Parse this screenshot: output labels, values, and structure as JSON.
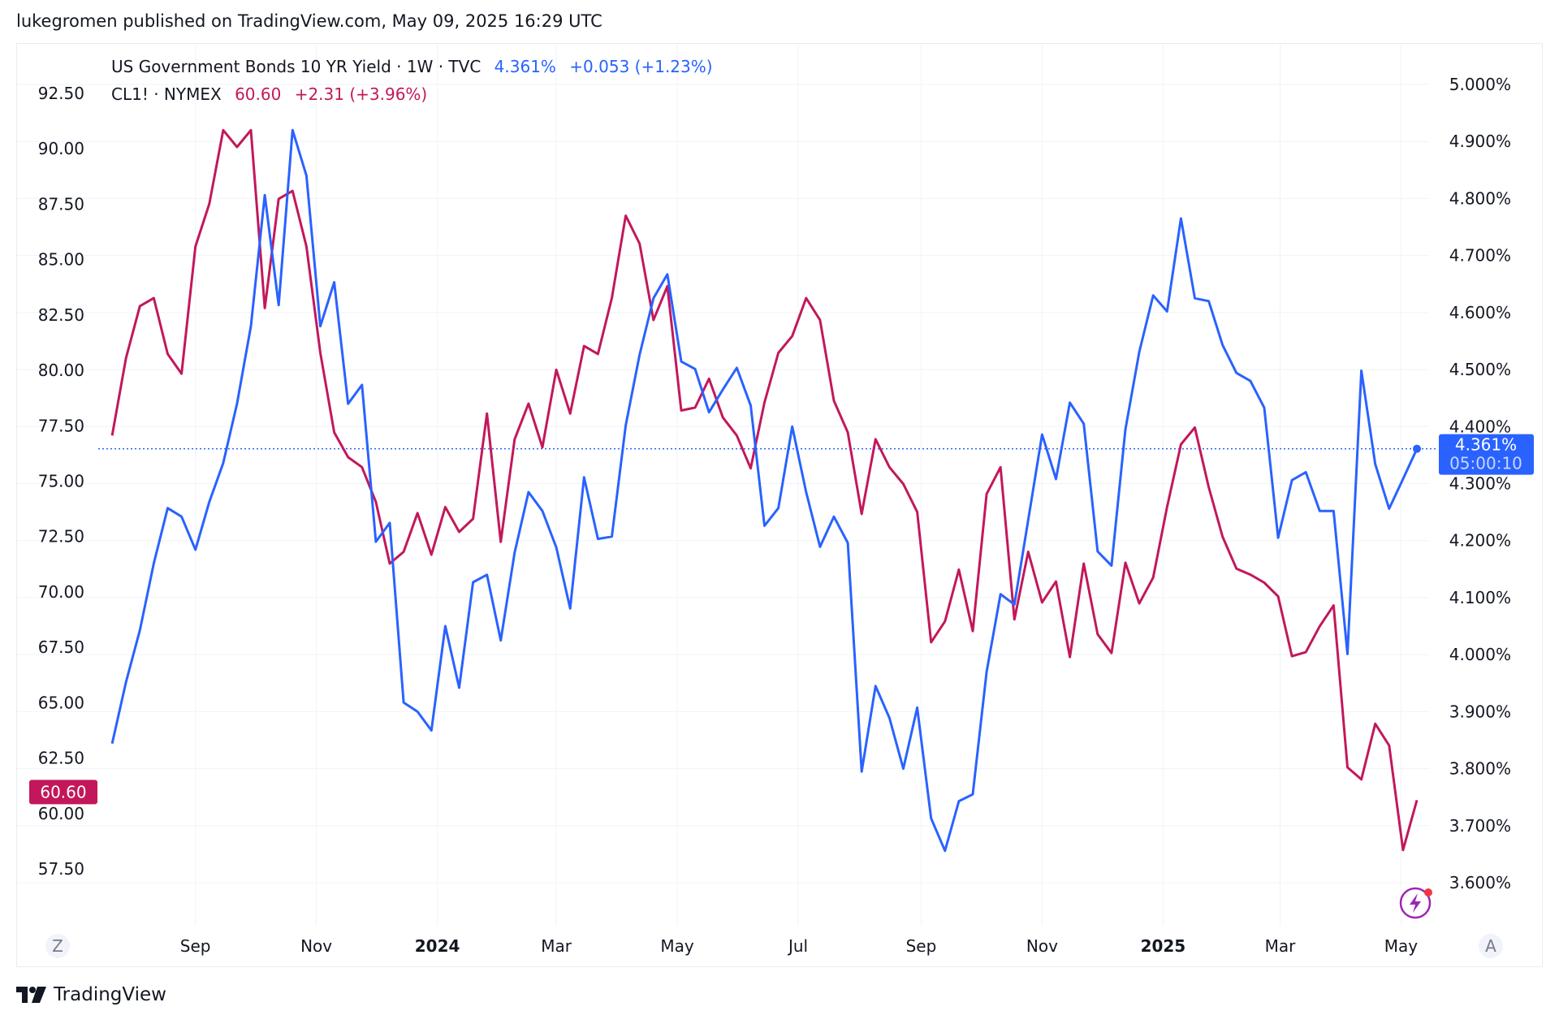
{
  "published": "lukegromen published on TradingView.com, May 09, 2025 16:29 UTC",
  "legend": {
    "series1": {
      "name": "US Government Bonds 10 YR Yield · 1W · TVC",
      "value": "4.361%",
      "change": "+0.053 (+1.23%)"
    },
    "series2": {
      "name": "CL1! · NYMEX",
      "value": "60.60",
      "change": "+2.31 (+3.96%)"
    }
  },
  "badges": {
    "oil_price": "60.60",
    "yield_price": "4.361%",
    "countdown": "05:00:10"
  },
  "axis_buttons": {
    "left": "Z",
    "right": "A"
  },
  "footer": {
    "brand": "TradingView"
  },
  "colors": {
    "yield": "#2962ff",
    "oil": "#c2185b",
    "grid": "#f0f3fa"
  },
  "chart_data": {
    "type": "line",
    "x_start": "2023-07-21",
    "x_interval": "1W",
    "xlim": [
      "2023-07-14",
      "2025-05-09"
    ],
    "x_ticks": [
      {
        "label": "Sep",
        "date": "2023-09-01",
        "bold": false
      },
      {
        "label": "Nov",
        "date": "2023-11-01",
        "bold": false
      },
      {
        "label": "2024",
        "date": "2024-01-01",
        "bold": true
      },
      {
        "label": "Mar",
        "date": "2024-03-01",
        "bold": false
      },
      {
        "label": "May",
        "date": "2024-05-01",
        "bold": false
      },
      {
        "label": "Jul",
        "date": "2024-07-01",
        "bold": false
      },
      {
        "label": "Sep",
        "date": "2024-09-01",
        "bold": false
      },
      {
        "label": "Nov",
        "date": "2024-11-01",
        "bold": false
      },
      {
        "label": "2025",
        "date": "2025-01-01",
        "bold": true
      },
      {
        "label": "Mar",
        "date": "2025-03-01",
        "bold": false
      },
      {
        "label": "May",
        "date": "2025-05-01",
        "bold": false
      }
    ],
    "left_axis": {
      "ylim": [
        57.5,
        92.5
      ],
      "ticks": [
        "92.50",
        "90.00",
        "87.50",
        "85.00",
        "82.50",
        "80.00",
        "77.50",
        "75.00",
        "72.50",
        "70.00",
        "67.50",
        "65.00",
        "62.50",
        "60.00",
        "57.50"
      ]
    },
    "right_axis": {
      "ylim": [
        3.6,
        5.0
      ],
      "ticks": [
        "5.000%",
        "4.900%",
        "4.800%",
        "4.700%",
        "4.600%",
        "4.500%",
        "4.400%",
        "4.300%",
        "4.200%",
        "4.100%",
        "4.000%",
        "3.900%",
        "3.800%",
        "3.700%",
        "3.600%"
      ]
    },
    "grid": true,
    "series": [
      {
        "name": "US Government Bonds 10 YR Yield",
        "axis": "right",
        "values": [
          3.844,
          3.952,
          4.043,
          4.16,
          4.257,
          4.242,
          4.184,
          4.268,
          4.336,
          4.44,
          4.576,
          4.806,
          4.613,
          4.92,
          4.84,
          4.576,
          4.653,
          4.44,
          4.473,
          4.198,
          4.231,
          3.916,
          3.9,
          3.867,
          4.05,
          3.942,
          4.127,
          4.14,
          4.025,
          4.179,
          4.285,
          4.252,
          4.188,
          4.081,
          4.311,
          4.203,
          4.207,
          4.402,
          4.526,
          4.625,
          4.667,
          4.514,
          4.501,
          4.425,
          4.465,
          4.503,
          4.437,
          4.226,
          4.257,
          4.4,
          4.285,
          4.189,
          4.242,
          4.196,
          3.795,
          3.945,
          3.889,
          3.8,
          3.907,
          3.713,
          3.656,
          3.743,
          3.755,
          3.97,
          4.106,
          4.088,
          4.236,
          4.386,
          4.308,
          4.442,
          4.405,
          4.181,
          4.156,
          4.395,
          4.531,
          4.63,
          4.602,
          4.765,
          4.625,
          4.62,
          4.543,
          4.494,
          4.48,
          4.433,
          4.205,
          4.306,
          4.32,
          4.252,
          4.252,
          4.001,
          4.498,
          4.334,
          4.256,
          4.308,
          4.361
        ]
      },
      {
        "name": "CL1!",
        "axis": "left",
        "values": [
          77.06,
          80.56,
          82.9,
          83.26,
          80.74,
          79.85,
          85.59,
          87.52,
          90.84,
          90.08,
          90.84,
          82.81,
          87.74,
          88.1,
          85.59,
          80.79,
          77.2,
          76.08,
          75.63,
          74.06,
          71.28,
          71.81,
          73.56,
          71.68,
          73.83,
          72.71,
          73.3,
          78.05,
          72.26,
          76.89,
          78.5,
          76.53,
          80.03,
          78.05,
          81.1,
          80.74,
          83.26,
          86.98,
          85.72,
          82.27,
          83.8,
          78.19,
          78.32,
          79.62,
          77.87,
          77.06,
          75.58,
          78.55,
          80.79,
          81.55,
          83.26,
          82.27,
          78.63,
          77.2,
          73.52,
          76.89,
          75.63,
          74.87,
          73.61,
          67.73,
          68.67,
          71.01,
          68.23,
          74.42,
          75.63,
          68.76,
          71.81,
          69.53,
          70.47,
          67.06,
          71.28,
          68.09,
          67.24,
          71.32,
          69.48,
          70.65,
          73.83,
          76.66,
          77.42,
          74.73,
          72.49,
          71.05,
          70.78,
          70.42,
          69.8,
          67.1,
          67.28,
          68.45,
          69.39,
          62.08,
          61.54,
          64.05,
          63.07,
          58.35,
          60.6
        ]
      }
    ]
  }
}
